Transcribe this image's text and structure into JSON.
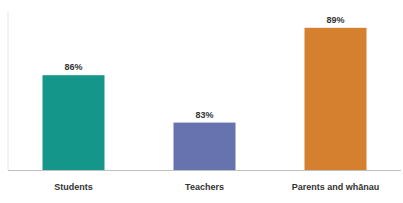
{
  "chart_data": {
    "type": "bar",
    "categories": [
      "Students",
      "Teachers",
      "Parents and whānau"
    ],
    "values": [
      86,
      83,
      89
    ],
    "value_labels": [
      "86%",
      "83%",
      "89%"
    ],
    "colors": [
      "#14968a",
      "#6673ae",
      "#d5802f"
    ],
    "ylim": [
      80,
      90
    ],
    "data_labels": true,
    "tick_labels": "x",
    "grid": false
  }
}
